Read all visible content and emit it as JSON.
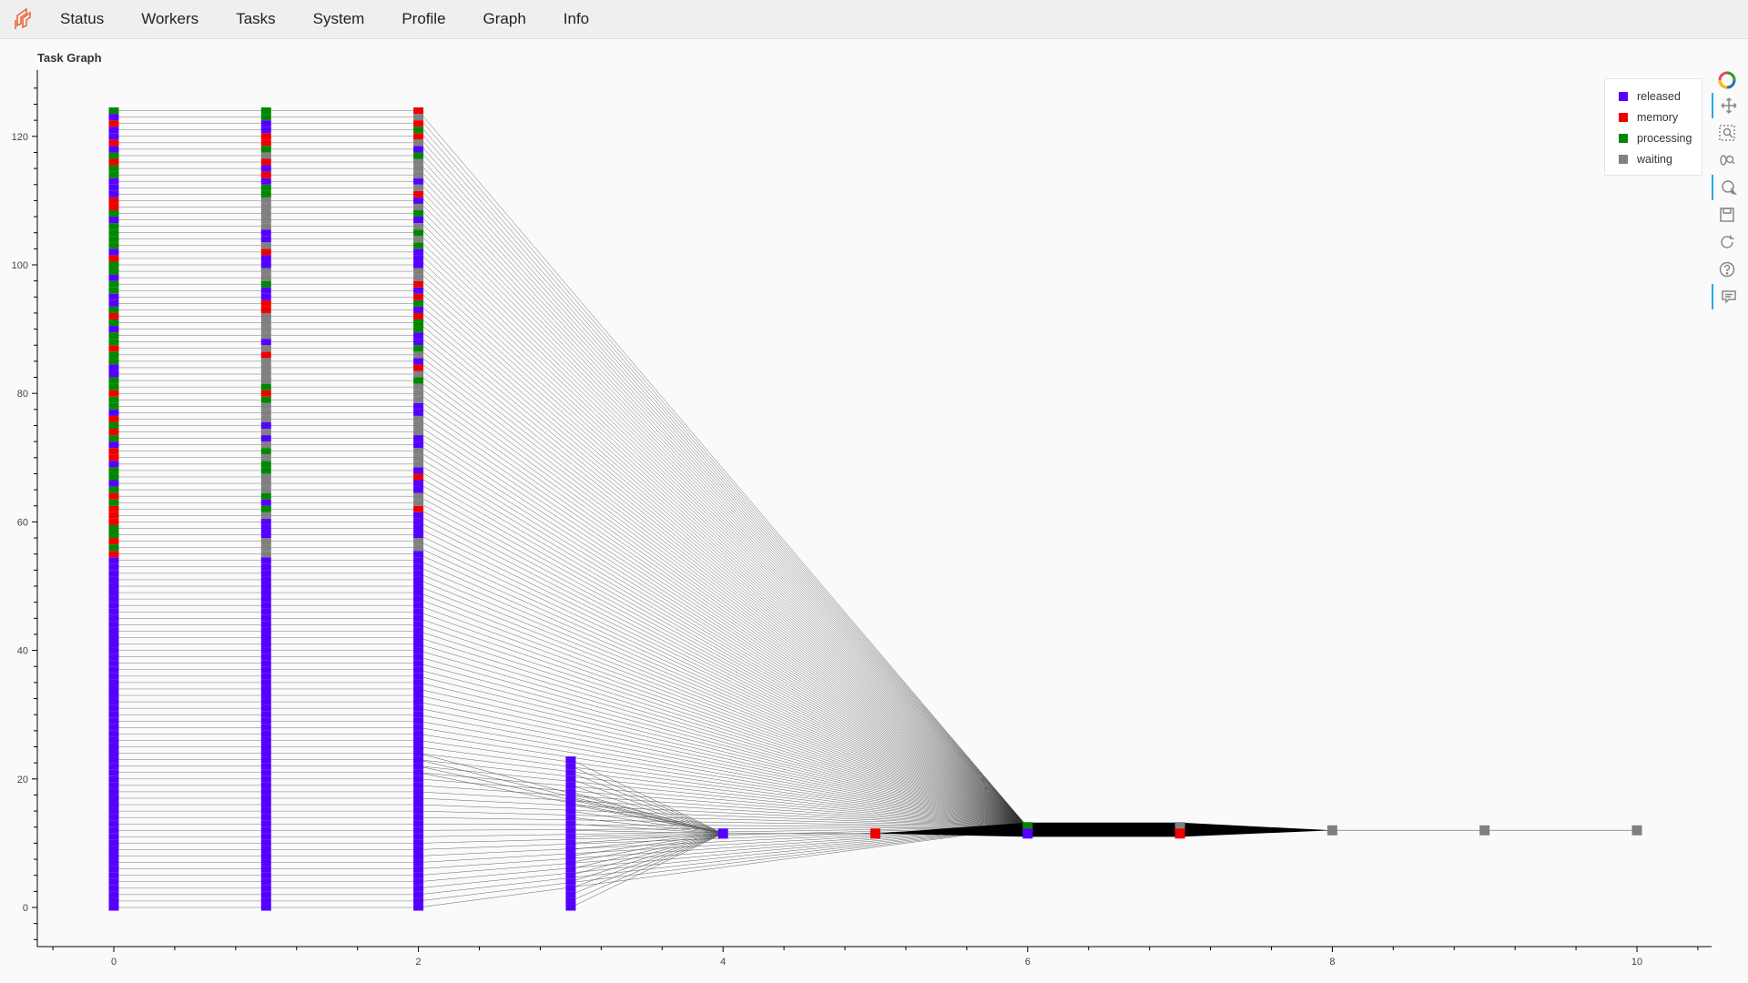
{
  "nav": {
    "items": [
      "Status",
      "Workers",
      "Tasks",
      "System",
      "Profile",
      "Graph",
      "Info"
    ]
  },
  "plot": {
    "title": "Task Graph",
    "x_ticks": [
      "0",
      "2",
      "4",
      "6",
      "8",
      "10"
    ],
    "y_ticks": [
      "0",
      "20",
      "40",
      "60",
      "80",
      "100",
      "120"
    ]
  },
  "legend": {
    "items": [
      {
        "label": "released",
        "color": "#5500ff"
      },
      {
        "label": "memory",
        "color": "#ee0000"
      },
      {
        "label": "processing",
        "color": "#008800"
      },
      {
        "label": "waiting",
        "color": "#808080"
      }
    ]
  },
  "toolbar": {
    "tools": [
      "bokeh-logo-icon",
      "pan-icon",
      "box-zoom-icon",
      "wheel-zoom-icon",
      "tap-icon",
      "save-icon",
      "reset-icon",
      "help-icon",
      "hover-icon"
    ]
  },
  "chart_data": {
    "type": "scatter",
    "title": "Task Graph",
    "xlim": [
      -0.5,
      10.5
    ],
    "ylim": [
      -6,
      131
    ],
    "columns": [
      {
        "x": 0,
        "y_range": [
          0,
          124
        ],
        "note": "125 tasks, mostly released with processing/memory near top"
      },
      {
        "x": 1,
        "y_range": [
          0,
          124
        ],
        "note": "125 tasks, released/waiting/memory/processing mix"
      },
      {
        "x": 2,
        "y_range": [
          0,
          124
        ],
        "note": "125 tasks, released/waiting/memory/processing mix"
      },
      {
        "x": 3,
        "y_range": [
          0,
          23
        ],
        "note": "24 released tasks"
      }
    ],
    "nodes": [
      {
        "x": 4,
        "y": 11.5,
        "state": "released"
      },
      {
        "x": 5,
        "y": 11.5,
        "state": "memory"
      },
      {
        "x": 6,
        "y": 12.5,
        "state": "processing"
      },
      {
        "x": 6,
        "y": 11.5,
        "state": "released"
      },
      {
        "x": 7,
        "y": 12.5,
        "state": "waiting"
      },
      {
        "x": 7,
        "y": 11.5,
        "state": "memory"
      },
      {
        "x": 8,
        "y": 12,
        "state": "waiting"
      },
      {
        "x": 9,
        "y": 12,
        "state": "waiting"
      },
      {
        "x": 10,
        "y": 12,
        "state": "waiting"
      }
    ],
    "legend_position": "top-right",
    "grid": false
  }
}
